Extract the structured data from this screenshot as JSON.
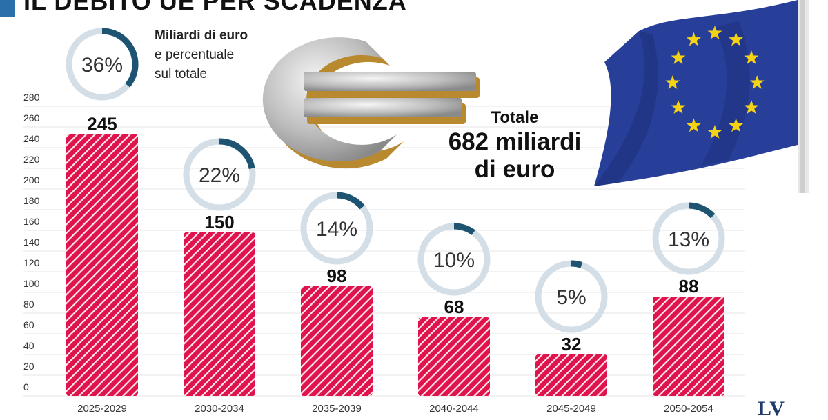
{
  "header": {
    "title": "IL DEBITO UE PER SCADENZA"
  },
  "legend": {
    "line1": "Miliardi di euro",
    "line2": "e percentuale",
    "line3": "sul totale",
    "sample_percent": "36%"
  },
  "total": {
    "label": "Totale",
    "value_line1": "682 miliardi",
    "value_line2": "di euro"
  },
  "colors": {
    "bar": "#e0144c",
    "ring_track": "#d3dee7",
    "ring_fill": "#1e5472",
    "title_accent": "#2a6fa8"
  },
  "chart_data": {
    "type": "bar",
    "categories": [
      "2025-2029",
      "2030-2034",
      "2035-2039",
      "2040-2044",
      "2045-2049",
      "2050-2054"
    ],
    "values": [
      245,
      150,
      98,
      68,
      32,
      88
    ],
    "value_labels": [
      "245",
      "150",
      "98",
      "68",
      "32",
      "88"
    ],
    "percentages": [
      36,
      22,
      14,
      10,
      5,
      13
    ],
    "percent_labels": [
      "36%",
      "22%",
      "14%",
      "10%",
      "5%",
      "13%"
    ],
    "y_ticks": [
      "0",
      "20",
      "40",
      "60",
      "80",
      "100",
      "120",
      "140",
      "160",
      "180",
      "200",
      "220",
      "240",
      "260",
      "280"
    ],
    "ylim": [
      0,
      280
    ],
    "grid": true
  },
  "logo": {
    "text": "LV"
  }
}
